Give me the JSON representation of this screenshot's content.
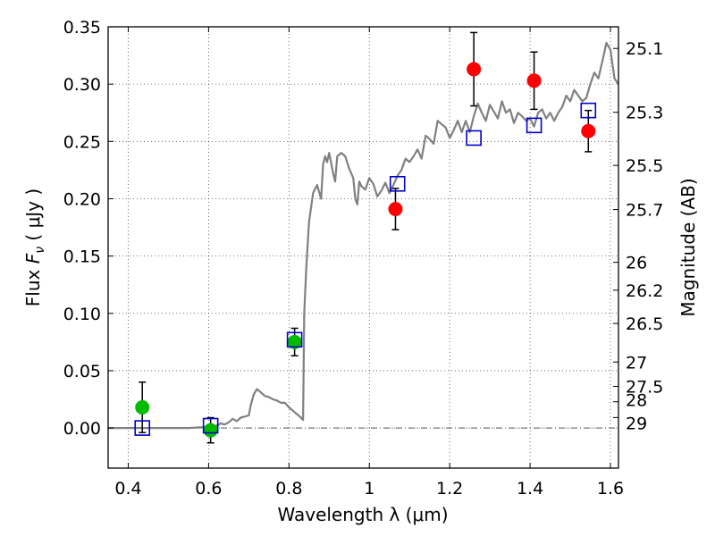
{
  "chart_data": {
    "type": "scatter",
    "xlabel": "Wavelength  λ (μm)",
    "ylabel": "Flux  F_ν  ( μJy )",
    "ylabel_parts": {
      "prefix": "Flux  ",
      "var": "F",
      "sub": "ν",
      "suffix": "  ( μJy )"
    },
    "y2label": "Magnitude (AB)",
    "xlim": [
      0.35,
      1.62
    ],
    "ylim": [
      -0.035,
      0.35
    ],
    "grid": true,
    "x_ticks": [
      {
        "value": 0.4,
        "label": "0.4"
      },
      {
        "value": 0.6,
        "label": "0.6"
      },
      {
        "value": 0.8,
        "label": "0.8"
      },
      {
        "value": 1.0,
        "label": "1"
      },
      {
        "value": 1.2,
        "label": "1.2"
      },
      {
        "value": 1.4,
        "label": "1.4"
      },
      {
        "value": 1.6,
        "label": "1.6"
      }
    ],
    "y_ticks": [
      {
        "value": 0.0,
        "label": "0.00"
      },
      {
        "value": 0.05,
        "label": "0.05"
      },
      {
        "value": 0.1,
        "label": "0.10"
      },
      {
        "value": 0.15,
        "label": "0.15"
      },
      {
        "value": 0.2,
        "label": "0.20"
      },
      {
        "value": 0.25,
        "label": "0.25"
      },
      {
        "value": 0.3,
        "label": "0.30"
      },
      {
        "value": 0.35,
        "label": "0.35"
      }
    ],
    "y2_ticks": [
      {
        "mag": 25.1,
        "label": "25.1"
      },
      {
        "mag": 25.3,
        "label": "25.3"
      },
      {
        "mag": 25.5,
        "label": "25.5"
      },
      {
        "mag": 25.7,
        "label": "25.7"
      },
      {
        "mag": 26,
        "label": "26"
      },
      {
        "mag": 26.2,
        "label": "26.2"
      },
      {
        "mag": 26.5,
        "label": "26.5"
      },
      {
        "mag": 27,
        "label": "27"
      },
      {
        "mag": 27.5,
        "label": "27.5"
      },
      {
        "mag": 28,
        "label": "28"
      },
      {
        "mag": 29,
        "label": "29"
      }
    ],
    "zero_line": 0.0,
    "series": [
      {
        "kind": "line",
        "color": "#808080",
        "points": [
          [
            0.35,
            0.0
          ],
          [
            0.55,
            0.0
          ],
          [
            0.6,
            0.001
          ],
          [
            0.62,
            0.002
          ],
          [
            0.63,
            0.004
          ],
          [
            0.64,
            0.003
          ],
          [
            0.65,
            0.005
          ],
          [
            0.66,
            0.008
          ],
          [
            0.67,
            0.006
          ],
          [
            0.68,
            0.009
          ],
          [
            0.69,
            0.01
          ],
          [
            0.7,
            0.011
          ],
          [
            0.705,
            0.02
          ],
          [
            0.712,
            0.029
          ],
          [
            0.72,
            0.034
          ],
          [
            0.73,
            0.031
          ],
          [
            0.74,
            0.028
          ],
          [
            0.75,
            0.027
          ],
          [
            0.76,
            0.025
          ],
          [
            0.77,
            0.024
          ],
          [
            0.78,
            0.022
          ],
          [
            0.79,
            0.022
          ],
          [
            0.8,
            0.018
          ],
          [
            0.81,
            0.015
          ],
          [
            0.82,
            0.012
          ],
          [
            0.83,
            0.009
          ],
          [
            0.835,
            0.007
          ],
          [
            0.838,
            0.1
          ],
          [
            0.843,
            0.14
          ],
          [
            0.85,
            0.18
          ],
          [
            0.86,
            0.205
          ],
          [
            0.87,
            0.212
          ],
          [
            0.88,
            0.2
          ],
          [
            0.885,
            0.23
          ],
          [
            0.89,
            0.237
          ],
          [
            0.895,
            0.232
          ],
          [
            0.9,
            0.24
          ],
          [
            0.91,
            0.222
          ],
          [
            0.915,
            0.215
          ],
          [
            0.92,
            0.237
          ],
          [
            0.93,
            0.24
          ],
          [
            0.94,
            0.237
          ],
          [
            0.95,
            0.226
          ],
          [
            0.96,
            0.218
          ],
          [
            0.965,
            0.2
          ],
          [
            0.97,
            0.195
          ],
          [
            0.975,
            0.215
          ],
          [
            0.98,
            0.211
          ],
          [
            0.99,
            0.208
          ],
          [
            1.0,
            0.218
          ],
          [
            1.01,
            0.213
          ],
          [
            1.02,
            0.202
          ],
          [
            1.03,
            0.207
          ],
          [
            1.04,
            0.214
          ],
          [
            1.05,
            0.205
          ],
          [
            1.06,
            0.212
          ],
          [
            1.07,
            0.22
          ],
          [
            1.08,
            0.225
          ],
          [
            1.09,
            0.235
          ],
          [
            1.1,
            0.232
          ],
          [
            1.11,
            0.237
          ],
          [
            1.12,
            0.243
          ],
          [
            1.13,
            0.235
          ],
          [
            1.14,
            0.255
          ],
          [
            1.15,
            0.252
          ],
          [
            1.16,
            0.248
          ],
          [
            1.17,
            0.268
          ],
          [
            1.18,
            0.265
          ],
          [
            1.19,
            0.262
          ],
          [
            1.2,
            0.253
          ],
          [
            1.21,
            0.26
          ],
          [
            1.22,
            0.268
          ],
          [
            1.23,
            0.258
          ],
          [
            1.24,
            0.268
          ],
          [
            1.25,
            0.258
          ],
          [
            1.26,
            0.272
          ],
          [
            1.27,
            0.283
          ],
          [
            1.28,
            0.275
          ],
          [
            1.29,
            0.268
          ],
          [
            1.3,
            0.282
          ],
          [
            1.31,
            0.276
          ],
          [
            1.32,
            0.27
          ],
          [
            1.33,
            0.285
          ],
          [
            1.34,
            0.275
          ],
          [
            1.35,
            0.278
          ],
          [
            1.36,
            0.266
          ],
          [
            1.37,
            0.275
          ],
          [
            1.38,
            0.272
          ],
          [
            1.39,
            0.268
          ],
          [
            1.4,
            0.27
          ],
          [
            1.41,
            0.263
          ],
          [
            1.42,
            0.275
          ],
          [
            1.43,
            0.278
          ],
          [
            1.44,
            0.27
          ],
          [
            1.45,
            0.275
          ],
          [
            1.46,
            0.268
          ],
          [
            1.47,
            0.275
          ],
          [
            1.48,
            0.28
          ],
          [
            1.49,
            0.29
          ],
          [
            1.5,
            0.285
          ],
          [
            1.51,
            0.295
          ],
          [
            1.52,
            0.29
          ],
          [
            1.53,
            0.285
          ],
          [
            1.54,
            0.288
          ],
          [
            1.55,
            0.3
          ],
          [
            1.56,
            0.31
          ],
          [
            1.57,
            0.305
          ],
          [
            1.58,
            0.32
          ],
          [
            1.59,
            0.336
          ],
          [
            1.6,
            0.33
          ],
          [
            1.61,
            0.305
          ],
          [
            1.62,
            0.3
          ]
        ]
      },
      {
        "kind": "scatter",
        "marker": "circle",
        "color": "#00bb00",
        "points": [
          {
            "x": 0.435,
            "y": 0.018,
            "err": 0.022
          },
          {
            "x": 0.605,
            "y": -0.002,
            "err": 0.011
          },
          {
            "x": 0.814,
            "y": 0.075,
            "err": 0.012
          }
        ]
      },
      {
        "kind": "scatter",
        "marker": "circle",
        "color": "#ff0000",
        "points": [
          {
            "x": 1.065,
            "y": 0.191,
            "err": 0.018
          },
          {
            "x": 1.26,
            "y": 0.313,
            "err": 0.032
          },
          {
            "x": 1.41,
            "y": 0.303,
            "err": 0.025
          },
          {
            "x": 1.545,
            "y": 0.259,
            "err": 0.018
          }
        ]
      },
      {
        "kind": "scatter",
        "marker": "open-square",
        "color": "#0000cc",
        "points": [
          {
            "x": 0.435,
            "y": 0.0
          },
          {
            "x": 0.605,
            "y": 0.002
          },
          {
            "x": 0.814,
            "y": 0.077
          },
          {
            "x": 1.07,
            "y": 0.213
          },
          {
            "x": 1.26,
            "y": 0.253
          },
          {
            "x": 1.41,
            "y": 0.264
          },
          {
            "x": 1.545,
            "y": 0.277
          }
        ]
      }
    ]
  }
}
